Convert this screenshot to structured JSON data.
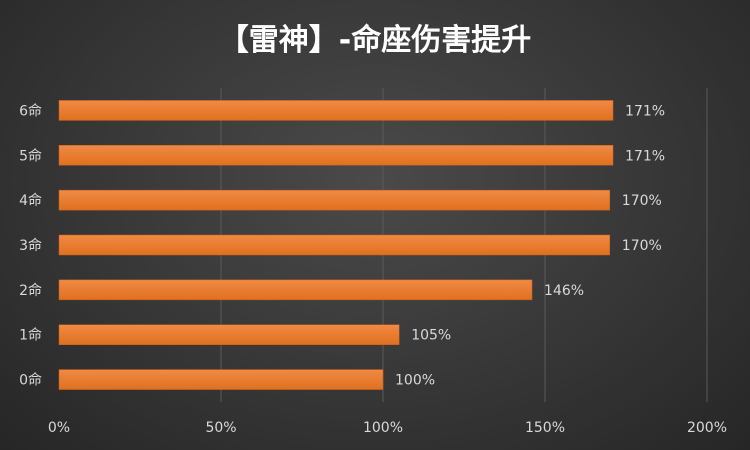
{
  "chart_data": {
    "type": "bar",
    "orientation": "horizontal",
    "title": "【雷神】-命座伤害提升",
    "categories": [
      "0命",
      "1命",
      "2命",
      "3命",
      "4命",
      "5命",
      "6命"
    ],
    "values": [
      100,
      105,
      146,
      170,
      170,
      171,
      171
    ],
    "value_labels": [
      "100%",
      "105%",
      "146%",
      "170%",
      "170%",
      "171%",
      "171%"
    ],
    "x_ticks": [
      "0%",
      "50%",
      "100%",
      "150%",
      "200%"
    ],
    "xlim": [
      0,
      200
    ],
    "grid": true,
    "bar_color": "#ED7D31",
    "background_color": "#333333"
  }
}
